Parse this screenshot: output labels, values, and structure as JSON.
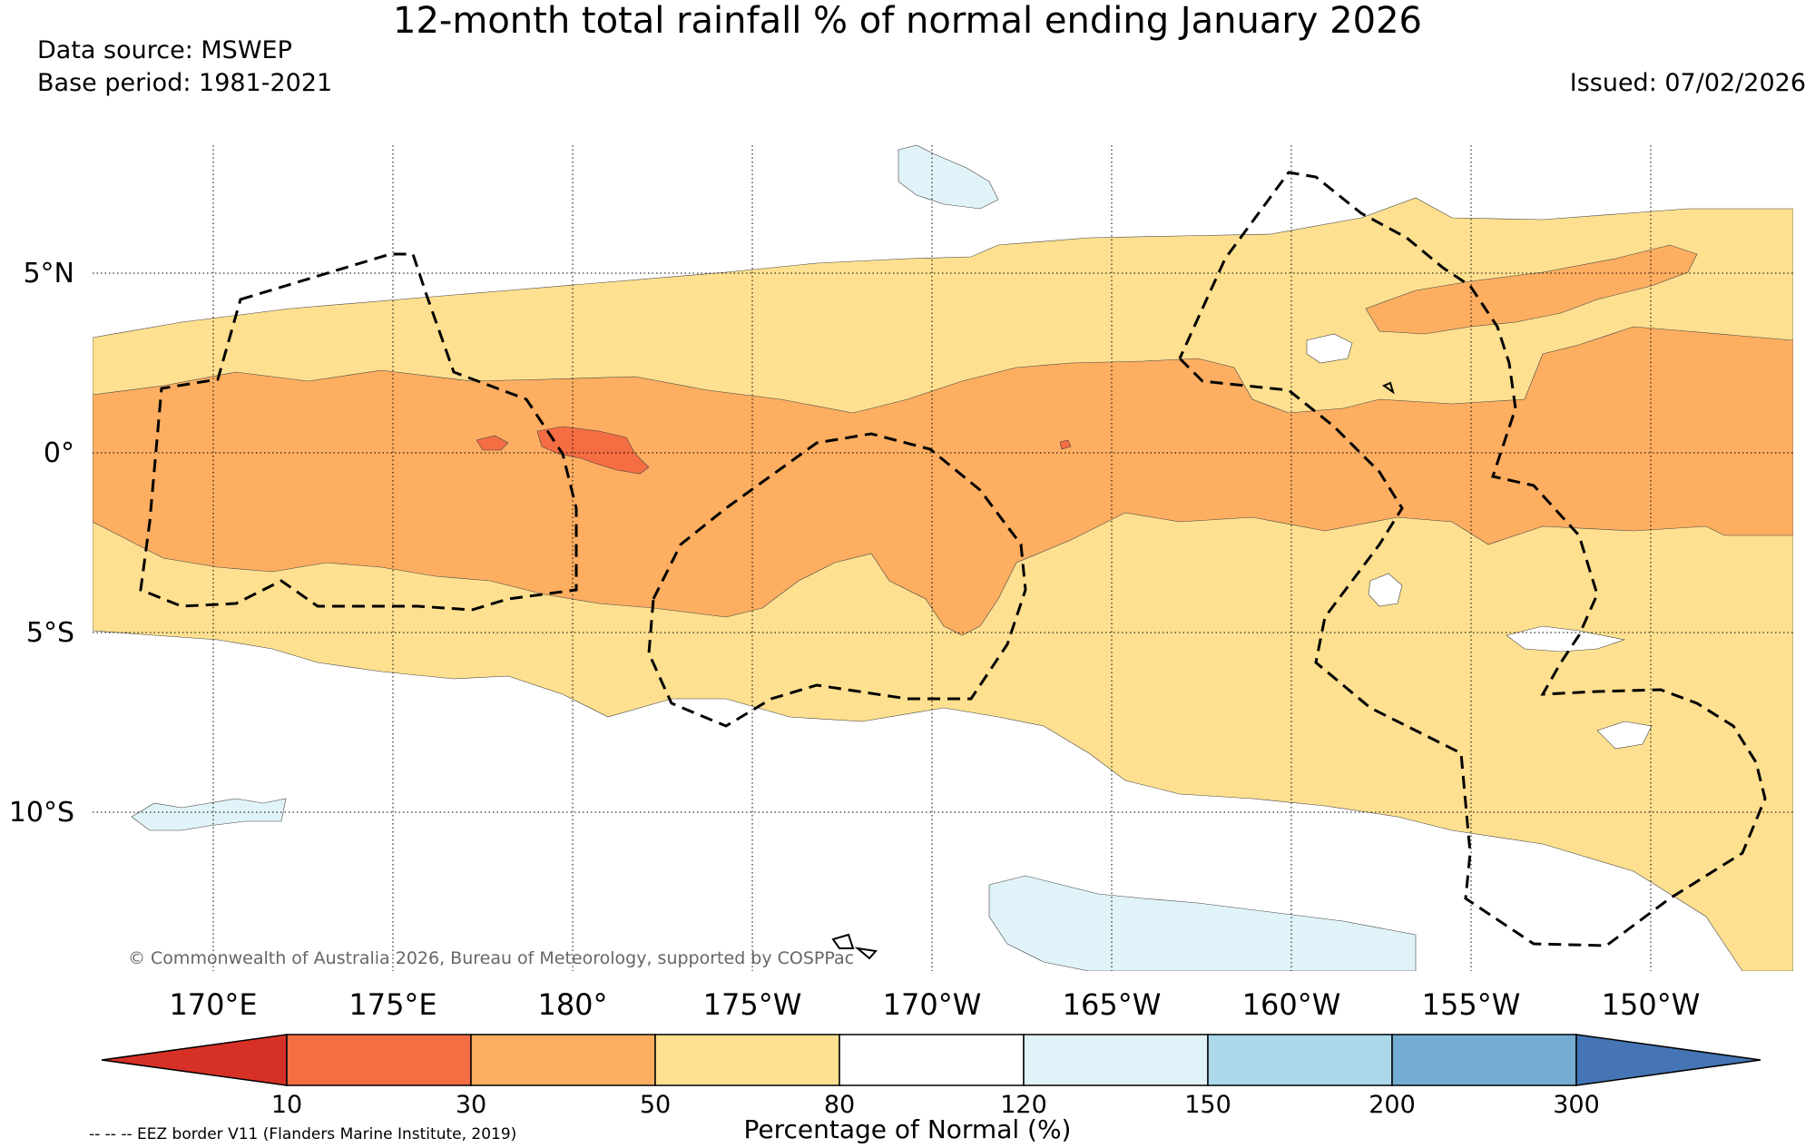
{
  "title": "12-month total rainfall % of normal ending January 2026",
  "data_source": "Data source: MSWEP",
  "base_period": "Base period: 1981-2021",
  "issued": "Issued: 07/02/2026",
  "credit": "© Commonwealth of Australia 2026, Bureau of Meteorology, supported by COSPPac",
  "eez_note": "-- -- -- EEZ border V11 (Flanders Marine Institute, 2019)",
  "lat_labels": [
    "5°N",
    "0°",
    "5°S",
    "10°S"
  ],
  "lon_labels": [
    "170°E",
    "175°E",
    "180°",
    "175°W",
    "170°W",
    "165°W",
    "160°W",
    "155°W",
    "150°W"
  ],
  "colorbar": {
    "label": "Percentage of Normal (%)",
    "ticks": [
      "10",
      "30",
      "50",
      "80",
      "120",
      "150",
      "200",
      "300"
    ],
    "colors": {
      "below_10": "#d73027",
      "10_30": "#f46d43",
      "30_50": "#fdae61",
      "50_80": "#fee090",
      "80_120": "#ffffff",
      "120_150": "#e0f3f8",
      "150_200": "#abd9e9",
      "200_300": "#74add1",
      "above_300": "#4575b4"
    }
  }
}
